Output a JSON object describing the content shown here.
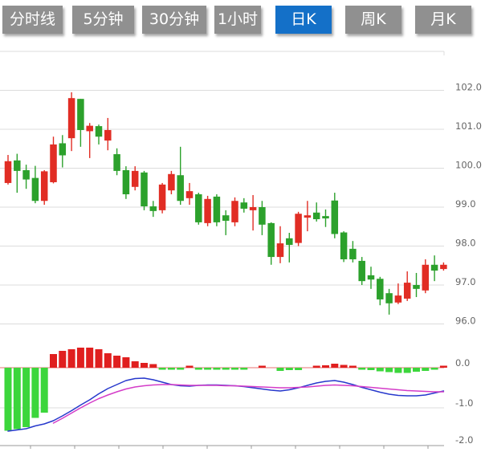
{
  "tabbar": {
    "inactive_color": "#909090",
    "active_color": "#1470c8",
    "tabs": [
      {
        "label": "分时线",
        "active": false
      },
      {
        "label": "5分钟",
        "active": false
      },
      {
        "label": "30分钟",
        "active": false
      },
      {
        "label": "1小时",
        "active": false
      },
      {
        "label": "日K",
        "active": true
      },
      {
        "label": "周K",
        "active": false
      },
      {
        "label": "月K",
        "active": false
      }
    ]
  },
  "chart_data": {
    "type": "candlestick+macd",
    "title": "",
    "legend_position": "none",
    "grid": true,
    "price_axis": {
      "side": "right",
      "tick_labels": [
        "102.0",
        "101.0",
        "100.0",
        "99.0",
        "98.0",
        "97.0",
        "96.0"
      ],
      "tick_values": [
        102,
        101,
        100,
        99,
        98,
        97,
        96
      ],
      "grid_levels": [
        103,
        102,
        101,
        100,
        99,
        98,
        97,
        96
      ],
      "range": [
        95.8,
        103.1
      ]
    },
    "macd_axis": {
      "side": "right",
      "tick_labels": [
        "0.0",
        "-1.0",
        "-2.0"
      ],
      "tick_values": [
        0,
        -1,
        -2
      ],
      "range": [
        -2.1,
        0.6
      ]
    },
    "candles_ohlc_note": "each candle = [open, close, high, low]; red when close>=open, green when close<open",
    "candles": [
      [
        99.62,
        100.18,
        100.34,
        99.58
      ],
      [
        100.2,
        99.93,
        100.37,
        99.37
      ],
      [
        99.95,
        99.71,
        100.09,
        99.47
      ],
      [
        99.75,
        99.16,
        100.06,
        99.1
      ],
      [
        99.16,
        99.92,
        99.95,
        99.06
      ],
      [
        99.64,
        100.61,
        100.81,
        99.61
      ],
      [
        100.64,
        100.33,
        100.85,
        100.02
      ],
      [
        100.77,
        101.8,
        101.95,
        100.44
      ],
      [
        101.78,
        100.98,
        101.78,
        100.55
      ],
      [
        100.95,
        101.09,
        101.16,
        100.26
      ],
      [
        101.08,
        100.81,
        101.12,
        100.61
      ],
      [
        100.71,
        100.98,
        101.29,
        100.46
      ],
      [
        100.36,
        99.93,
        100.51,
        99.82
      ],
      [
        99.95,
        99.33,
        100.05,
        99.21
      ],
      [
        99.52,
        99.93,
        100.05,
        99.43
      ],
      [
        99.89,
        99.02,
        99.93,
        98.92
      ],
      [
        99.02,
        98.9,
        99.16,
        98.75
      ],
      [
        98.92,
        99.58,
        99.62,
        98.84
      ],
      [
        99.43,
        99.85,
        99.93,
        99.33
      ],
      [
        99.82,
        99.16,
        100.55,
        99.06
      ],
      [
        99.23,
        99.41,
        99.62,
        99.06
      ],
      [
        99.33,
        98.61,
        99.37,
        98.55
      ],
      [
        98.59,
        99.21,
        99.29,
        98.51
      ],
      [
        99.27,
        98.61,
        99.33,
        98.51
      ],
      [
        98.79,
        98.65,
        98.92,
        98.28
      ],
      [
        98.61,
        99.16,
        99.25,
        98.51
      ],
      [
        99.12,
        98.96,
        99.23,
        98.86
      ],
      [
        98.92,
        99.0,
        99.31,
        98.4
      ],
      [
        99.0,
        98.55,
        99.16,
        98.28
      ],
      [
        98.59,
        97.72,
        98.61,
        97.52
      ],
      [
        97.72,
        98.07,
        98.51,
        97.56
      ],
      [
        98.2,
        98.03,
        98.34,
        97.58
      ],
      [
        98.08,
        98.83,
        98.88,
        98.0
      ],
      [
        98.73,
        98.79,
        99.16,
        98.38
      ],
      [
        98.86,
        98.69,
        99.12,
        98.63
      ],
      [
        98.77,
        98.71,
        98.94,
        98.49
      ],
      [
        99.17,
        98.31,
        99.37,
        98.2
      ],
      [
        98.35,
        97.66,
        98.38,
        97.59
      ],
      [
        97.93,
        97.66,
        98.13,
        97.58
      ],
      [
        97.62,
        97.1,
        97.72,
        97.0
      ],
      [
        97.25,
        97.14,
        97.47,
        96.9
      ],
      [
        97.16,
        96.63,
        97.21,
        96.48
      ],
      [
        96.79,
        96.53,
        96.9,
        96.24
      ],
      [
        96.55,
        96.73,
        97.04,
        96.51
      ],
      [
        96.65,
        97.06,
        97.35,
        96.59
      ],
      [
        97.0,
        96.9,
        97.31,
        96.69
      ],
      [
        96.86,
        97.52,
        97.66,
        96.79
      ],
      [
        97.52,
        97.37,
        97.76,
        97.1
      ],
      [
        97.41,
        97.52,
        97.58,
        97.37
      ]
    ],
    "macd": {
      "hist": [
        -1.57,
        -1.53,
        -1.48,
        -1.25,
        -1.12,
        0.34,
        0.42,
        0.46,
        0.5,
        0.5,
        0.46,
        0.36,
        0.3,
        0.26,
        0.16,
        0.12,
        0.09,
        -0.02,
        -0.03,
        -0.03,
        0.02,
        -0.02,
        -0.04,
        -0.05,
        -0.05,
        -0.05,
        -0.05,
        0,
        0.03,
        0,
        -0.08,
        -0.06,
        -0.06,
        0,
        0.04,
        0.06,
        0.1,
        0.07,
        0.03,
        -0.03,
        -0.06,
        -0.09,
        -0.11,
        -0.13,
        -0.13,
        -0.1,
        -0.08,
        -0.05,
        0.04
      ],
      "dif": [
        -1.58,
        -1.55,
        -1.52,
        -1.45,
        -1.4,
        -1.32,
        -1.2,
        -1.07,
        -0.93,
        -0.8,
        -0.65,
        -0.52,
        -0.42,
        -0.32,
        -0.27,
        -0.26,
        -0.3,
        -0.36,
        -0.42,
        -0.45,
        -0.46,
        -0.44,
        -0.43,
        -0.43,
        -0.44,
        -0.45,
        -0.47,
        -0.5,
        -0.53,
        -0.56,
        -0.58,
        -0.55,
        -0.5,
        -0.44,
        -0.38,
        -0.34,
        -0.32,
        -0.36,
        -0.42,
        -0.49,
        -0.55,
        -0.61,
        -0.66,
        -0.69,
        -0.7,
        -0.7,
        -0.68,
        -0.63,
        -0.58
      ],
      "dea": [
        null,
        null,
        null,
        null,
        null,
        -1.38,
        -1.26,
        -1.13,
        -1.0,
        -0.88,
        -0.77,
        -0.68,
        -0.6,
        -0.53,
        -0.48,
        -0.45,
        -0.43,
        -0.42,
        -0.42,
        -0.43,
        -0.44,
        -0.44,
        -0.44,
        -0.44,
        -0.45,
        -0.45,
        -0.46,
        -0.47,
        -0.48,
        -0.49,
        -0.5,
        -0.5,
        -0.49,
        -0.48,
        -0.46,
        -0.44,
        -0.43,
        -0.44,
        -0.45,
        -0.47,
        -0.49,
        -0.51,
        -0.53,
        -0.55,
        -0.57,
        -0.58,
        -0.59,
        -0.6,
        -0.6
      ]
    },
    "colors": {
      "candle_up": "#e12d24",
      "candle_down": "#2ca12c",
      "hist_up": "#e01f1f",
      "hist_down": "#3cd63c",
      "dif_line": "#2638cc",
      "dea_line": "#d43cc8",
      "grid": "#dcdcdc",
      "zero_line": "#e87272",
      "axis_text": "#666666",
      "time_axis": "#999999"
    }
  }
}
